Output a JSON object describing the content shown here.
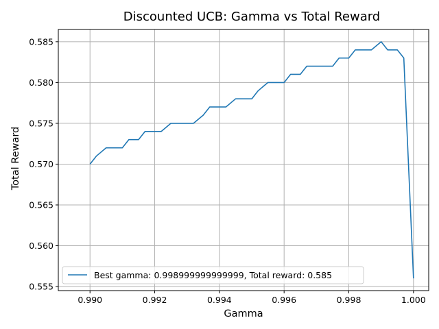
{
  "chart_data": {
    "type": "line",
    "title": "Discounted UCB: Gamma vs Total Reward",
    "xlabel": "Gamma",
    "ylabel": "Total Reward",
    "xlim": [
      0.98902,
      1.00047
    ],
    "ylim": [
      0.5545,
      0.5865
    ],
    "x_ticks": [
      0.99,
      0.992,
      0.994,
      0.996,
      0.998,
      1.0
    ],
    "x_tick_labels": [
      "0.990",
      "0.992",
      "0.994",
      "0.996",
      "0.998",
      "1.000"
    ],
    "y_ticks": [
      0.555,
      0.56,
      0.565,
      0.57,
      0.575,
      0.58,
      0.585
    ],
    "y_tick_labels": [
      "0.555",
      "0.560",
      "0.565",
      "0.570",
      "0.575",
      "0.580",
      "0.585"
    ],
    "grid": true,
    "legend_position": "lower-left",
    "colors": {
      "series": "#1f77b4",
      "grid": "#b0b0b0",
      "axis": "#000000"
    },
    "series": [
      {
        "name": "Best gamma: 0.998999999999999, Total reward: 0.585",
        "x": [
          0.99,
          0.9902,
          0.9905,
          0.9907,
          0.991,
          0.9912,
          0.9915,
          0.9917,
          0.992,
          0.9922,
          0.9925,
          0.9927,
          0.993,
          0.9932,
          0.9935,
          0.9937,
          0.994,
          0.9942,
          0.9945,
          0.9947,
          0.995,
          0.9952,
          0.9955,
          0.9957,
          0.996,
          0.9962,
          0.9965,
          0.9967,
          0.997,
          0.9972,
          0.9975,
          0.9977,
          0.998,
          0.9982,
          0.9985,
          0.9987,
          0.999,
          0.9992,
          0.9995,
          0.9997,
          1.0
        ],
        "y": [
          0.57,
          0.571,
          0.572,
          0.572,
          0.572,
          0.573,
          0.573,
          0.574,
          0.574,
          0.574,
          0.575,
          0.575,
          0.575,
          0.575,
          0.576,
          0.577,
          0.577,
          0.577,
          0.578,
          0.578,
          0.578,
          0.579,
          0.58,
          0.58,
          0.58,
          0.581,
          0.581,
          0.582,
          0.582,
          0.582,
          0.582,
          0.583,
          0.583,
          0.584,
          0.584,
          0.584,
          0.585,
          0.584,
          0.584,
          0.583,
          0.556
        ]
      }
    ]
  }
}
